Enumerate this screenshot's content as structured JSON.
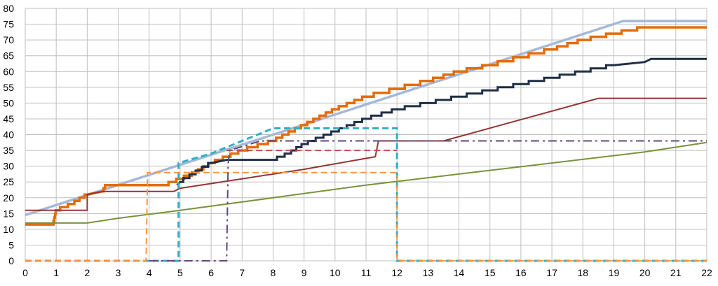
{
  "chart_data": {
    "type": "line",
    "title": "",
    "xlabel": "",
    "ylabel": "",
    "xlim": [
      0,
      22
    ],
    "ylim": [
      0,
      80
    ],
    "grid": true,
    "legend": "none",
    "x_ticks": [
      "0",
      "1",
      "2",
      "3",
      "4",
      "5",
      "6",
      "7",
      "8",
      "9",
      "10",
      "11",
      "12",
      "13",
      "14",
      "15",
      "16",
      "17",
      "18",
      "19",
      "20",
      "21",
      "22"
    ],
    "y_ticks": [
      "0",
      "5",
      "10",
      "15",
      "20",
      "25",
      "30",
      "35",
      "40",
      "45",
      "50",
      "55",
      "60",
      "65",
      "70",
      "75",
      "80"
    ],
    "series": [
      {
        "color": "#a6b8d8",
        "style": "solid",
        "width": 3.5,
        "points": [
          [
            0,
            14.5
          ],
          [
            19.3,
            76
          ],
          [
            22,
            76
          ]
        ]
      },
      {
        "color": "#e36c0a",
        "style": "solid",
        "width": 3.5,
        "step": true,
        "points": [
          [
            0,
            11.5
          ],
          [
            0.9,
            11.5
          ],
          [
            1,
            16
          ],
          [
            1.5,
            18
          ],
          [
            2,
            21
          ],
          [
            2.5,
            22
          ],
          [
            2.6,
            24
          ],
          [
            4.5,
            24
          ],
          [
            5,
            26
          ],
          [
            5.5,
            28
          ],
          [
            6,
            31
          ],
          [
            6.5,
            33
          ],
          [
            7,
            35
          ],
          [
            8,
            38
          ],
          [
            9,
            43
          ],
          [
            10,
            48
          ],
          [
            11,
            52
          ],
          [
            12,
            54.5
          ],
          [
            13,
            57
          ],
          [
            14,
            60
          ],
          [
            15,
            62
          ],
          [
            16,
            64.5
          ],
          [
            17,
            67
          ],
          [
            18,
            70
          ],
          [
            19,
            72
          ],
          [
            20,
            74
          ],
          [
            22,
            74
          ]
        ]
      },
      {
        "color": "#1f2e45",
        "style": "solid",
        "width": 3,
        "step": true,
        "points": [
          [
            4.9,
            24
          ],
          [
            5,
            25
          ],
          [
            6,
            31
          ],
          [
            6.5,
            32
          ],
          [
            7,
            32
          ],
          [
            8,
            32
          ],
          [
            8.5,
            34
          ],
          [
            9,
            37
          ],
          [
            10,
            41
          ],
          [
            11,
            45
          ],
          [
            12,
            48
          ],
          [
            13,
            50
          ],
          [
            14,
            52
          ],
          [
            15,
            54
          ],
          [
            16,
            56
          ],
          [
            17,
            58
          ],
          [
            18,
            60
          ],
          [
            19,
            62
          ],
          [
            20,
            63
          ],
          [
            20.2,
            64
          ],
          [
            22,
            64
          ]
        ]
      },
      {
        "color": "#943634",
        "style": "solid",
        "width": 2,
        "points": [
          [
            0,
            16
          ],
          [
            2,
            16
          ],
          [
            2,
            21
          ],
          [
            2.5,
            22
          ],
          [
            4,
            22
          ],
          [
            4.8,
            22
          ],
          [
            5,
            23
          ],
          [
            7,
            26
          ],
          [
            9,
            29
          ],
          [
            11.3,
            33
          ],
          [
            11.4,
            38
          ],
          [
            13.5,
            38
          ],
          [
            18.5,
            51.5
          ],
          [
            22,
            51.5
          ]
        ]
      },
      {
        "color": "#77933c",
        "style": "solid",
        "width": 2,
        "points": [
          [
            0,
            12
          ],
          [
            2,
            12
          ],
          [
            3,
            13.5
          ],
          [
            5,
            16
          ],
          [
            8,
            20
          ],
          [
            11,
            24
          ],
          [
            14,
            27.5
          ],
          [
            17,
            31
          ],
          [
            20,
            34.5
          ],
          [
            22,
            37.5
          ]
        ]
      },
      {
        "color": "#31b0c4",
        "style": "dashed",
        "width": 3,
        "points": [
          [
            0,
            0
          ],
          [
            4.95,
            0
          ],
          [
            4.95,
            31
          ],
          [
            6,
            34
          ],
          [
            8,
            42
          ],
          [
            12,
            42
          ],
          [
            12,
            0
          ],
          [
            22,
            0
          ]
        ]
      },
      {
        "color": "#f79646",
        "style": "dashed",
        "width": 2,
        "points": [
          [
            0,
            0
          ],
          [
            3.9,
            0
          ],
          [
            3.95,
            28
          ],
          [
            12,
            28
          ],
          [
            12,
            0
          ],
          [
            22,
            0
          ]
        ]
      },
      {
        "color": "#c0504d",
        "style": "dashed",
        "width": 2,
        "points": [
          [
            6.5,
            35
          ],
          [
            12,
            35
          ]
        ]
      },
      {
        "color": "#604a7b",
        "style": "dashdot",
        "width": 2,
        "points": [
          [
            4,
            0
          ],
          [
            6.5,
            0
          ],
          [
            6.55,
            31
          ],
          [
            6.6,
            35
          ],
          [
            7.6,
            38
          ],
          [
            22,
            38
          ]
        ]
      }
    ]
  }
}
